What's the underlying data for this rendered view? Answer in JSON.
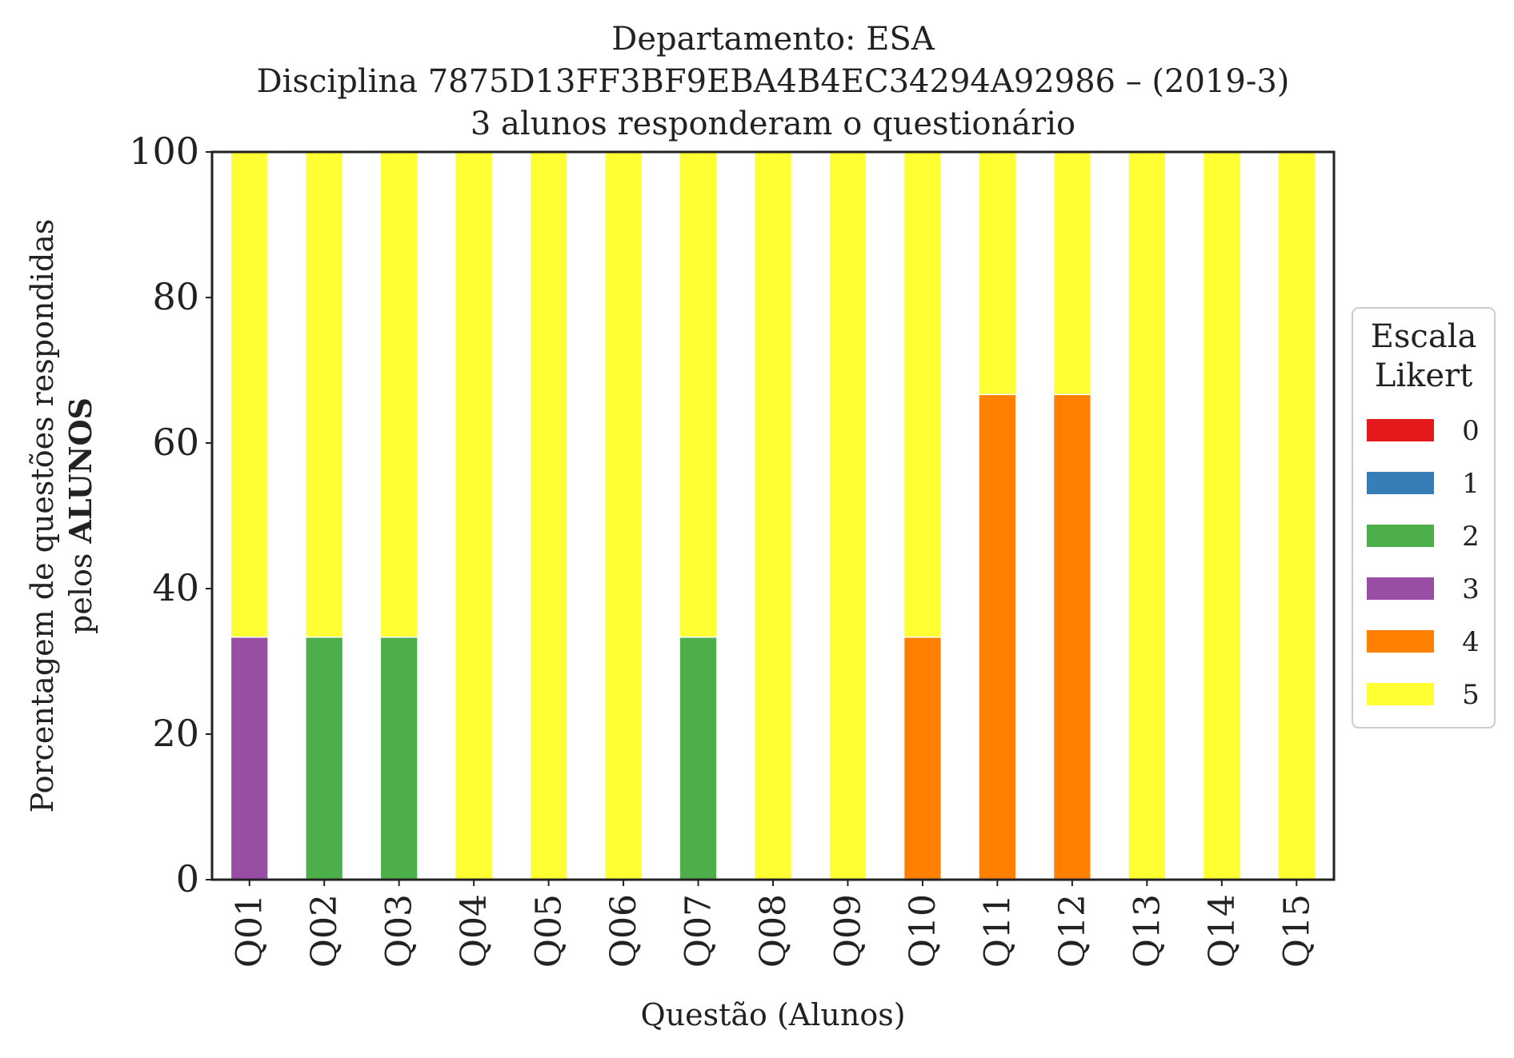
{
  "chart_data": {
    "type": "bar",
    "stacked": true,
    "title_lines": [
      "Departamento: ESA",
      "Disciplina 7875D13FF3BF9EBA4B4EC34294A92986 – (2019-3)",
      "3 alunos responderam o questionário"
    ],
    "xlabel": "Questão (Alunos)",
    "ylabel_line1": "Porcentagem de questões respondidas",
    "ylabel_line2_prefix": "pelos ",
    "ylabel_line2_bold": "ALUNOS",
    "ylim": [
      0,
      100
    ],
    "yticks": [
      "0",
      "20",
      "40",
      "60",
      "80",
      "100"
    ],
    "grid": false,
    "legend_position": "right",
    "legend_title_lines": [
      "Escala",
      "Likert"
    ],
    "categories": [
      "Q01",
      "Q02",
      "Q03",
      "Q04",
      "Q05",
      "Q06",
      "Q07",
      "Q08",
      "Q09",
      "Q10",
      "Q11",
      "Q12",
      "Q13",
      "Q14",
      "Q15"
    ],
    "series": [
      {
        "name": "0",
        "color": "#e41a1c",
        "values": [
          0,
          0,
          0,
          0,
          0,
          0,
          0,
          0,
          0,
          0,
          0,
          0,
          0,
          0,
          0
        ]
      },
      {
        "name": "1",
        "color": "#377eb8",
        "values": [
          0,
          0,
          0,
          0,
          0,
          0,
          0,
          0,
          0,
          0,
          0,
          0,
          0,
          0,
          0
        ]
      },
      {
        "name": "2",
        "color": "#4daf4a",
        "values": [
          0,
          33.33,
          33.33,
          0,
          0,
          0,
          33.33,
          0,
          0,
          0,
          0,
          0,
          0,
          0,
          0
        ]
      },
      {
        "name": "3",
        "color": "#984ea3",
        "values": [
          33.33,
          0,
          0,
          0,
          0,
          0,
          0,
          0,
          0,
          0,
          0,
          0,
          0,
          0,
          0
        ]
      },
      {
        "name": "4",
        "color": "#ff7f00",
        "values": [
          0,
          0,
          0,
          0,
          0,
          0,
          0,
          0,
          0,
          33.33,
          66.67,
          66.67,
          0,
          0,
          0
        ]
      },
      {
        "name": "5",
        "color": "#ffff33",
        "values": [
          66.67,
          66.67,
          66.67,
          100,
          100,
          100,
          66.67,
          100,
          100,
          66.67,
          33.33,
          33.33,
          100,
          100,
          100
        ]
      }
    ]
  }
}
